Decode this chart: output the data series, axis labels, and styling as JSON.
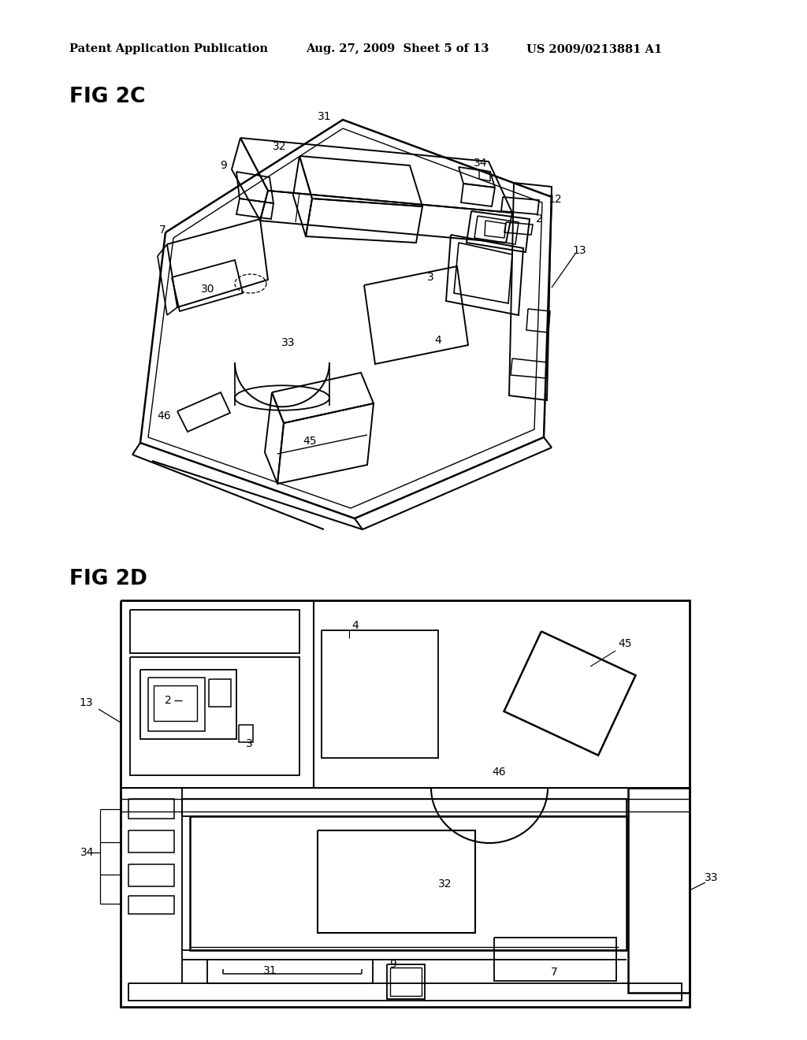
{
  "bg_color": "#ffffff",
  "header_left": "Patent Application Publication",
  "header_mid": "Aug. 27, 2009  Sheet 5 of 13",
  "header_right": "US 2009/0213881 A1",
  "fig2c_label": "FIG 2C",
  "fig2d_label": "FIG 2D"
}
